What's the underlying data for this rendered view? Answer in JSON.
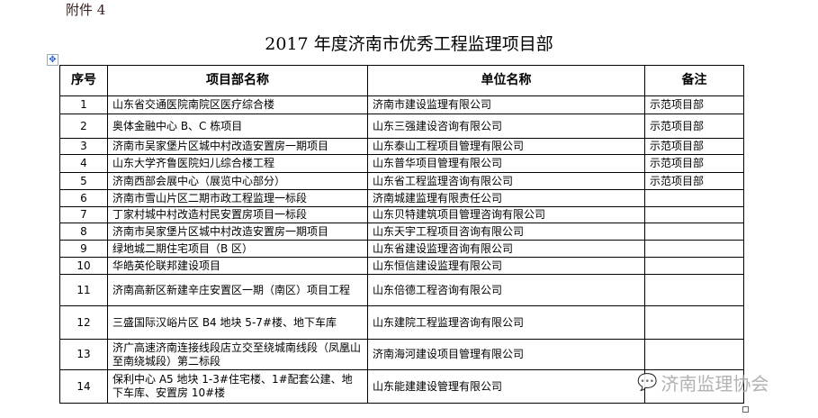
{
  "attachment_label": "附件 4",
  "title": "2017 年度济南市优秀工程监理项目部",
  "columns": [
    "序号",
    "项目部名称",
    "单位名称",
    "备注"
  ],
  "rows": [
    {
      "no": "1",
      "project": "山东省交通医院南院区医疗综合楼",
      "company": "济南市建设监理有限公司",
      "note": "示范项目部"
    },
    {
      "no": "2",
      "project": "奥体金融中心 B、C 栋项目",
      "company": "山东三强建设咨询有限公司",
      "note": "示范项目部"
    },
    {
      "no": "3",
      "project": "济南市吴家堡片区城中村改造安置房一期项目",
      "company": "山东泰山工程项目管理有限公司",
      "note": "示范项目部"
    },
    {
      "no": "4",
      "project": "山东大学齐鲁医院妇儿综合楼工程",
      "company": "山东普华项目管理有限公司",
      "note": "示范项目部"
    },
    {
      "no": "5",
      "project": "济南西部会展中心（展览中心部分）",
      "company": "山东省工程监理咨询有限公司",
      "note": "示范项目部"
    },
    {
      "no": "6",
      "project": "济南市雪山片区二期市政工程监理一标段",
      "company": "济南城建监理有限责任公司",
      "note": ""
    },
    {
      "no": "7",
      "project": "丁家村城中村改造村民安置房项目一标段",
      "company": "山东贝特建筑项目管理咨询有限公司",
      "note": ""
    },
    {
      "no": "8",
      "project": "济南市吴家堡片区城中村改造安置房一期项目",
      "company": "山东天宇工程项目咨询有限公司",
      "note": ""
    },
    {
      "no": "9",
      "project": "绿地城二期住宅项目（B 区）",
      "company": "山东省建设监理咨询有限公司",
      "note": ""
    },
    {
      "no": "10",
      "project": "华皓英伦联邦建设项目",
      "company": "山东恒信建设监理有限公司",
      "note": ""
    },
    {
      "no": "11",
      "project": "济南高新区新建辛庄安置区一期（南区）项目工程",
      "company": "山东倍德工程咨询有限公司",
      "note": ""
    },
    {
      "no": "12",
      "project": "三盛国际汉峪片区 B4 地块 5-7#楼、地下车库",
      "company": "山东建院工程监理咨询有限公司",
      "note": ""
    },
    {
      "no": "13",
      "project": "济广高速济南连接线段店立交至绕城南线段（凤凰山至南绕城段）第二标段",
      "company": "济南海河建设项目管理有限公司",
      "note": ""
    },
    {
      "no": "14",
      "project": "保利中心 A5 地块 1-3#住宅楼、1#配套公建、地下车库、安置房 10#楼",
      "company": "山东能建建设管理有限公司",
      "note": ""
    }
  ],
  "watermark": {
    "icon": "wechat-icon",
    "text": "济南监理协会"
  }
}
